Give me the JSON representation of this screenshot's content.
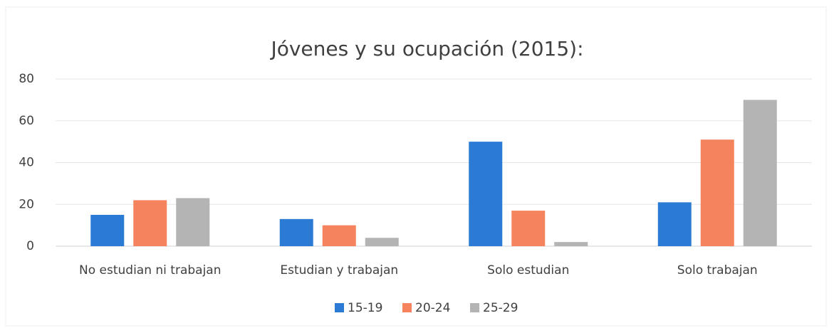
{
  "chart_data": {
    "type": "bar",
    "title": "Jóvenes y su ocupación (2015):",
    "categories": [
      "No estudian ni trabajan",
      "Estudian y trabajan",
      "Solo estudian",
      "Solo trabajan"
    ],
    "series": [
      {
        "name": "15-19",
        "color": "#2b7bd4",
        "values": [
          15,
          13,
          50,
          21
        ]
      },
      {
        "name": "20-24",
        "color": "#f5845e",
        "values": [
          22,
          10,
          17,
          51
        ]
      },
      {
        "name": "25-29",
        "color": "#b4b4b4",
        "values": [
          23,
          4,
          2,
          70
        ]
      }
    ],
    "ylim": [
      0,
      80
    ],
    "yticks": [
      0,
      20,
      40,
      60,
      80
    ],
    "grid": true,
    "legend": "bottom"
  }
}
